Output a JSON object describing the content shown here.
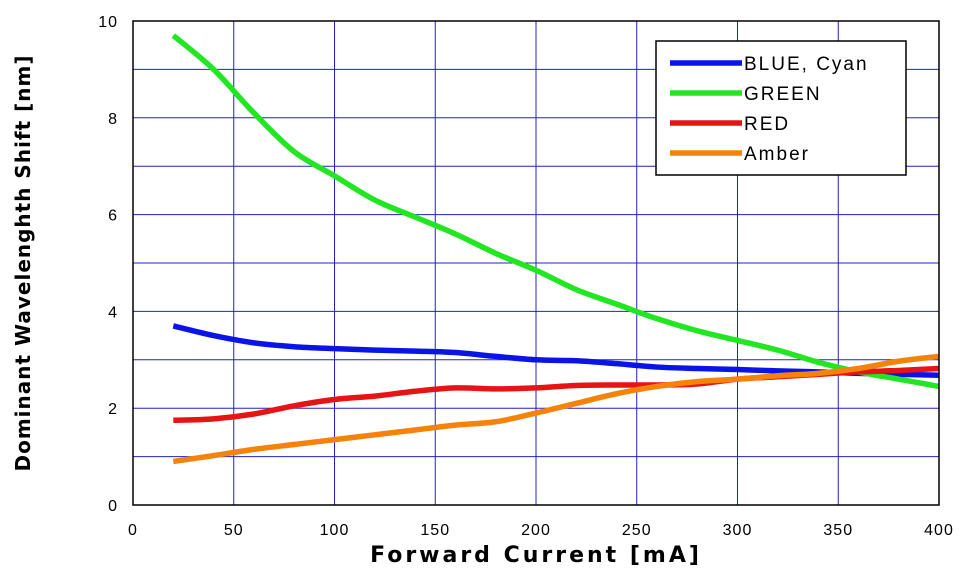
{
  "chart_data": {
    "type": "line",
    "xlabel": "Forward Current [mA]",
    "ylabel": "Dominant Wavelenghth Shift [nm]",
    "xlim": [
      0,
      400
    ],
    "ylim": [
      0,
      10
    ],
    "xticks": [
      0,
      50,
      100,
      150,
      200,
      250,
      300,
      350,
      400
    ],
    "yticks": [
      0,
      2,
      4,
      6,
      8,
      10
    ],
    "grid": true,
    "legend_position": "top-right",
    "series": [
      {
        "name": "BLUE, Cyan",
        "color": "#0a14e6",
        "x": [
          20,
          40,
          60,
          80,
          100,
          120,
          140,
          160,
          180,
          200,
          220,
          240,
          260,
          280,
          300,
          320,
          340,
          360,
          380,
          400
        ],
        "y": [
          3.7,
          3.5,
          3.35,
          3.27,
          3.23,
          3.2,
          3.18,
          3.15,
          3.07,
          3.0,
          2.98,
          2.92,
          2.85,
          2.82,
          2.8,
          2.77,
          2.75,
          2.72,
          2.7,
          2.68
        ]
      },
      {
        "name": "GREEN",
        "color": "#22e622",
        "x": [
          20,
          40,
          60,
          80,
          100,
          120,
          140,
          160,
          180,
          200,
          220,
          240,
          260,
          280,
          300,
          320,
          340,
          360,
          380,
          400
        ],
        "y": [
          9.7,
          9.0,
          8.1,
          7.3,
          6.8,
          6.3,
          5.95,
          5.6,
          5.2,
          4.85,
          4.45,
          4.15,
          3.85,
          3.6,
          3.4,
          3.2,
          2.95,
          2.75,
          2.6,
          2.45
        ]
      },
      {
        "name": "RED",
        "color": "#e61414",
        "x": [
          20,
          40,
          60,
          80,
          100,
          120,
          140,
          160,
          180,
          200,
          220,
          240,
          260,
          280,
          300,
          320,
          340,
          360,
          380,
          400
        ],
        "y": [
          1.75,
          1.78,
          1.88,
          2.05,
          2.18,
          2.25,
          2.35,
          2.42,
          2.4,
          2.42,
          2.47,
          2.48,
          2.48,
          2.5,
          2.6,
          2.65,
          2.7,
          2.75,
          2.78,
          2.82
        ]
      },
      {
        "name": "Amber",
        "color": "#f5820a",
        "x": [
          20,
          40,
          60,
          80,
          100,
          120,
          140,
          160,
          180,
          200,
          220,
          240,
          260,
          280,
          300,
          320,
          340,
          360,
          380,
          400
        ],
        "y": [
          0.9,
          1.02,
          1.15,
          1.25,
          1.35,
          1.45,
          1.55,
          1.65,
          1.72,
          1.9,
          2.1,
          2.3,
          2.45,
          2.55,
          2.6,
          2.67,
          2.72,
          2.82,
          2.97,
          3.07
        ]
      }
    ]
  }
}
